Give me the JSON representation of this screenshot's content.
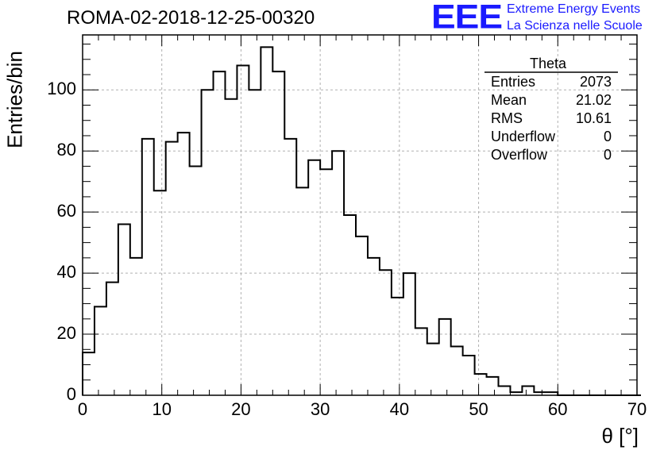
{
  "header": {
    "title": "ROMA-02-2018-12-25-00320",
    "logo_text": "EEE",
    "tagline_line1": "Extreme Energy Events",
    "tagline_line2": "La Scienza nelle Scuole",
    "brand_color": "#1a1aff"
  },
  "stats": {
    "title": "Theta",
    "rows": [
      {
        "label": "Entries",
        "value": "2073"
      },
      {
        "label": "Mean",
        "value": "21.02"
      },
      {
        "label": "RMS",
        "value": "10.61"
      },
      {
        "label": "Underflow",
        "value": "0"
      },
      {
        "label": "Overflow",
        "value": "0"
      }
    ]
  },
  "chart_data": {
    "type": "histogram",
    "title": "ROMA-02-2018-12-25-00320",
    "xlabel": "θ [°]",
    "ylabel": "Entries/bin",
    "xlim": [
      0,
      70
    ],
    "ylim": [
      0,
      118
    ],
    "grid": true,
    "bin_width": 1.5,
    "bin_start": 0,
    "x_ticks": [
      0,
      10,
      20,
      30,
      40,
      50,
      60,
      70
    ],
    "y_ticks": [
      0,
      20,
      40,
      60,
      80,
      100
    ],
    "values": [
      14,
      29,
      37,
      56,
      45,
      84,
      67,
      83,
      86,
      75,
      100,
      106,
      97,
      108,
      100,
      114,
      106,
      84,
      68,
      77,
      74,
      80,
      59,
      52,
      45,
      41,
      32,
      40,
      22,
      17,
      25,
      16,
      13,
      7,
      6,
      3,
      1,
      3,
      1,
      1,
      0,
      0,
      0,
      0,
      0,
      0,
      0
    ]
  }
}
